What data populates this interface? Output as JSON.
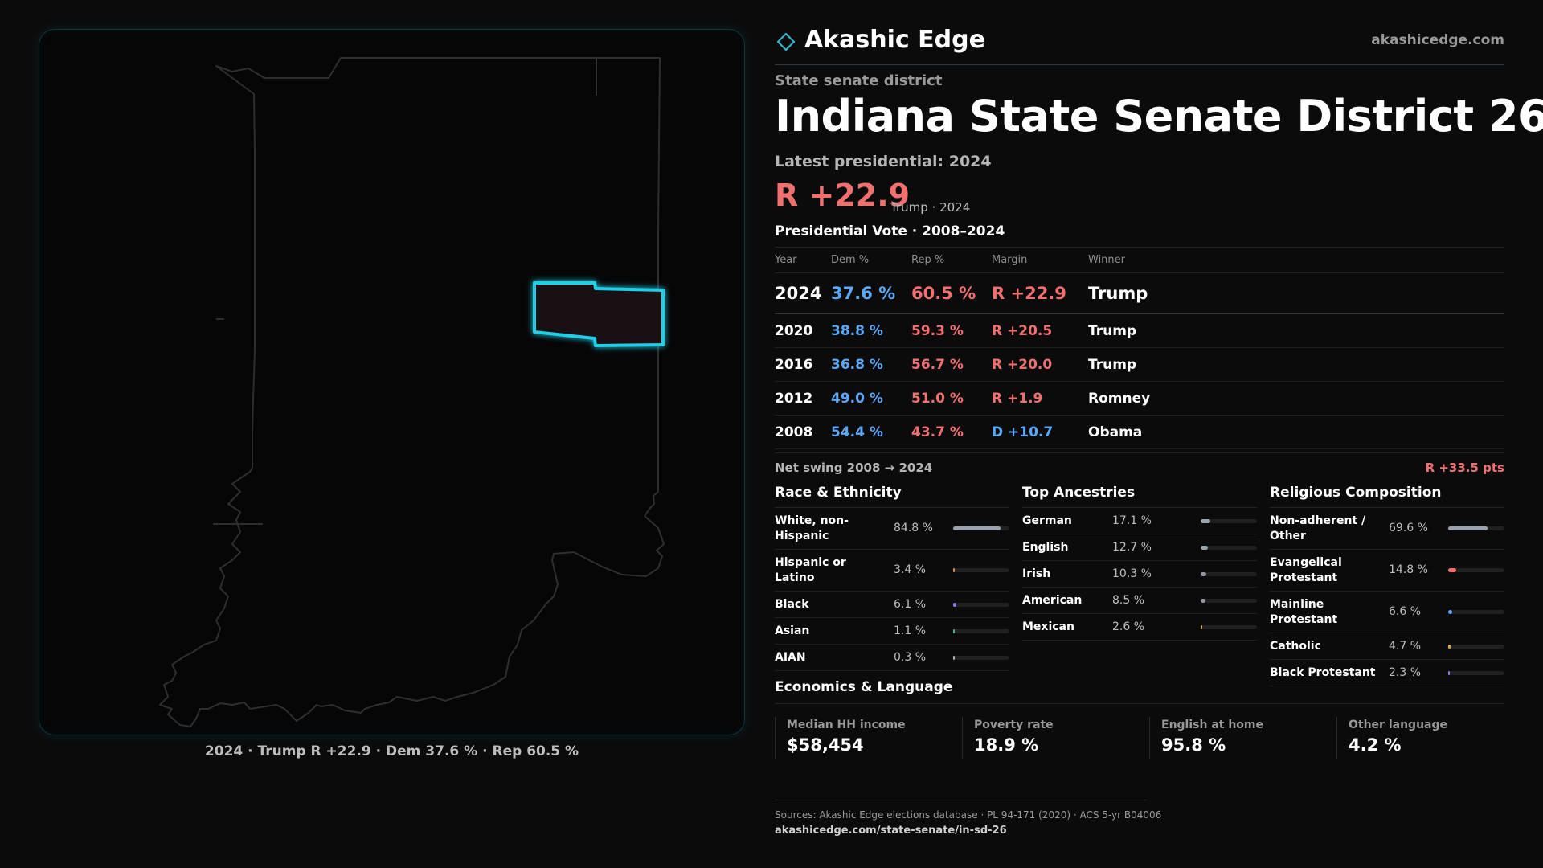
{
  "map": {
    "caption": "2024 · Trump R +22.9 · Dem 37.6 % · Rep 60.5 %",
    "outline_color": "#2e2e30",
    "district_stroke": "#22cde6",
    "district_fill": "#1a0f12"
  },
  "brand": {
    "name": "Akashic Edge",
    "url": "akashicedge.com",
    "accent": "#2fb7c9"
  },
  "header": {
    "kicker": "State senate district",
    "title": "Indiana State Senate District 26",
    "latest": "Latest presidential: 2024",
    "margin": "R +22.9",
    "margin_note": "Trump · 2024"
  },
  "presidential": {
    "title": "Presidential Vote · 2008–2024",
    "columns": [
      "Year",
      "Dem %",
      "Rep %",
      "Margin",
      "Winner"
    ],
    "rows": [
      {
        "year": "2024",
        "dem": "37.6 %",
        "rep": "60.5 %",
        "margin": "R +22.9",
        "winner": "Trump",
        "party": "R"
      },
      {
        "year": "2020",
        "dem": "38.8 %",
        "rep": "59.3 %",
        "margin": "R +20.5",
        "winner": "Trump",
        "party": "R"
      },
      {
        "year": "2016",
        "dem": "36.8 %",
        "rep": "56.7 %",
        "margin": "R +20.0",
        "winner": "Trump",
        "party": "R"
      },
      {
        "year": "2012",
        "dem": "49.0 %",
        "rep": "51.0 %",
        "margin": "R +1.9",
        "winner": "Romney",
        "party": "R"
      },
      {
        "year": "2008",
        "dem": "54.4 %",
        "rep": "43.7 %",
        "margin": "D +10.7",
        "winner": "Obama",
        "party": "D"
      }
    ],
    "swing_label": "Net swing 2008 → 2024",
    "swing_value": "R +33.5 pts"
  },
  "race": {
    "title": "Race & Ethnicity",
    "items": [
      {
        "label": "White, non-Hispanic",
        "value": "84.8 %",
        "pct": 84.8,
        "color": "#9aa3ad"
      },
      {
        "label": "Hispanic or Latino",
        "value": "3.4 %",
        "pct": 3.4,
        "color": "#e08a3c"
      },
      {
        "label": "Black",
        "value": "6.1 %",
        "pct": 6.1,
        "color": "#8a7cf0"
      },
      {
        "label": "Asian",
        "value": "1.1 %",
        "pct": 1.1,
        "color": "#3fb58a"
      },
      {
        "label": "AIAN",
        "value": "0.3 %",
        "pct": 0.3,
        "color": "#b0b0b0"
      }
    ]
  },
  "ancestry": {
    "title": "Top Ancestries",
    "items": [
      {
        "label": "German",
        "value": "17.1 %",
        "pct": 17.1,
        "color": "#9aa3ad"
      },
      {
        "label": "English",
        "value": "12.7 %",
        "pct": 12.7,
        "color": "#9aa3ad"
      },
      {
        "label": "Irish",
        "value": "10.3 %",
        "pct": 10.3,
        "color": "#8f98a2"
      },
      {
        "label": "American",
        "value": "8.5 %",
        "pct": 8.5,
        "color": "#8f98a2"
      },
      {
        "label": "Mexican",
        "value": "2.6 %",
        "pct": 2.6,
        "color": "#e0a23c"
      }
    ]
  },
  "religion": {
    "title": "Religious Composition",
    "items": [
      {
        "label": "Non-adherent / Other",
        "value": "69.6 %",
        "pct": 69.6,
        "color": "#9aa3ad"
      },
      {
        "label": "Evangelical Protestant",
        "value": "14.8 %",
        "pct": 14.8,
        "color": "#f07070"
      },
      {
        "label": "Mainline Protestant",
        "value": "6.6 %",
        "pct": 6.6,
        "color": "#5aa8f8"
      },
      {
        "label": "Catholic",
        "value": "4.7 %",
        "pct": 4.7,
        "color": "#e0a23c"
      },
      {
        "label": "Black Protestant",
        "value": "2.3 %",
        "pct": 2.3,
        "color": "#8a7cf0"
      }
    ]
  },
  "economics": {
    "title": "Economics & Language",
    "items": [
      {
        "label": "Median HH income",
        "value": "$58,454"
      },
      {
        "label": "Poverty rate",
        "value": "18.9 %"
      },
      {
        "label": "English at home",
        "value": "95.8 %"
      },
      {
        "label": "Other language",
        "value": "4.2 %"
      }
    ]
  },
  "sources": {
    "line": "Sources: Akashic Edge elections database · PL 94-171 (2020) · ACS 5-yr B04006",
    "url": "akashicedge.com/state-senate/in-sd-26"
  }
}
